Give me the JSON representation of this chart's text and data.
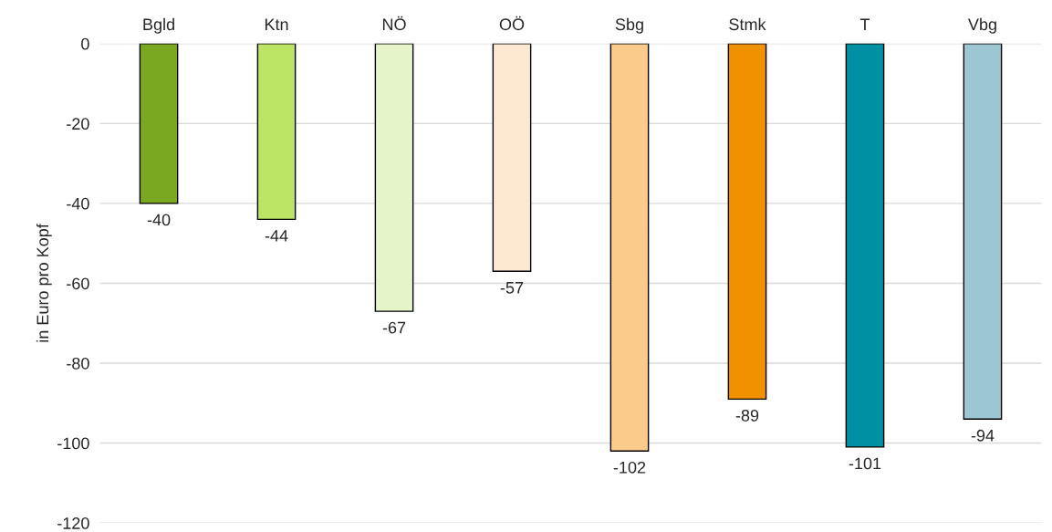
{
  "chart_data": {
    "type": "bar",
    "ylabel": "in Euro pro Kopf",
    "categories": [
      "Bgld",
      "Ktn",
      "NÖ",
      "OÖ",
      "Sbg",
      "Stmk",
      "T",
      "Vbg"
    ],
    "values": [
      -40,
      -44,
      -67,
      -57,
      -102,
      -89,
      -101,
      -94
    ],
    "colors": [
      "#7aa821",
      "#bce465",
      "#e5f4c9",
      "#fde9d2",
      "#fbcb8b",
      "#f29100",
      "#0090a3",
      "#9dc6d3"
    ],
    "ylim": [
      -120,
      0
    ],
    "yticks": [
      -120,
      -100,
      -80,
      -60,
      -40,
      -20,
      0
    ],
    "grid": "y",
    "data_labels": true
  }
}
